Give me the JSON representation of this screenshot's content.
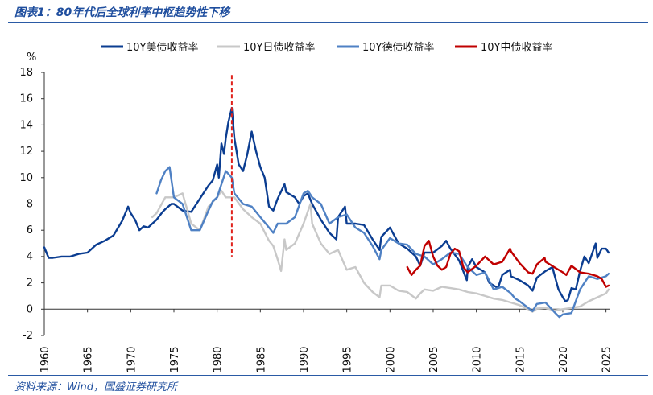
{
  "header": {
    "title": "图表1：80年代后全球利率中枢趋势性下移"
  },
  "footer": {
    "source": "资料来源：Wind，国盛证券研究所"
  },
  "chart_data": {
    "type": "line",
    "title": "图表1：80年代后全球利率中枢趋势性下移",
    "xlabel": "",
    "ylabel": "%",
    "xlim": [
      1960,
      2025.5
    ],
    "ylim": [
      -2,
      18
    ],
    "x_ticks": [
      1960,
      1965,
      1970,
      1975,
      1980,
      1985,
      1990,
      1995,
      2000,
      2005,
      2010,
      2015,
      2020,
      2025
    ],
    "y_ticks": [
      -2,
      0,
      2,
      4,
      6,
      8,
      10,
      12,
      14,
      16,
      18
    ],
    "legend_position": "top",
    "annotations": [
      {
        "type": "vertical-dashed-line",
        "x": 1981.7,
        "y_range": [
          4,
          17.8
        ],
        "color": "#e0221c"
      }
    ],
    "series": [
      {
        "name": "10Y美债收益率",
        "color": "#0b3d91",
        "x": [
          1960,
          1960.5,
          1961,
          1962,
          1963,
          1964,
          1965,
          1966,
          1967,
          1968,
          1969,
          1969.7,
          1970,
          1970.5,
          1971,
          1971.5,
          1972,
          1973,
          1973.7,
          1974,
          1974.7,
          1975,
          1976,
          1977,
          1978,
          1979,
          1979.5,
          1980,
          1980.2,
          1980.5,
          1980.8,
          1981,
          1981.3,
          1981.7,
          1982,
          1982.5,
          1983,
          1983.5,
          1984,
          1984.5,
          1985,
          1985.5,
          1986,
          1986.5,
          1987,
          1987.8,
          1988,
          1989,
          1989.5,
          1990,
          1990.5,
          1991,
          1992,
          1993,
          1993.8,
          1994,
          1994.8,
          1995,
          1996,
          1997,
          1998,
          1998.8,
          1999,
          2000,
          2001,
          2002,
          2003,
          2003.5,
          2004,
          2005,
          2006,
          2006.5,
          2007,
          2008,
          2008.9,
          2009,
          2009.5,
          2010,
          2011,
          2011.5,
          2012,
          2012.5,
          2013,
          2013.9,
          2014,
          2015,
          2016,
          2016.5,
          2017,
          2018,
          2018.8,
          2019,
          2019.5,
          2020,
          2020.3,
          2020.6,
          2021,
          2021.5,
          2022,
          2022.5,
          2023,
          2023.8,
          2024,
          2024.5,
          2025,
          2025.3
        ],
        "y": [
          4.7,
          3.9,
          3.9,
          4.0,
          4.0,
          4.2,
          4.3,
          4.9,
          5.2,
          5.6,
          6.7,
          7.8,
          7.3,
          6.8,
          6.0,
          6.3,
          6.2,
          6.8,
          7.4,
          7.6,
          8.0,
          8.0,
          7.5,
          7.4,
          8.4,
          9.4,
          9.8,
          11.0,
          10.0,
          12.6,
          11.8,
          13.0,
          14.2,
          15.3,
          13.0,
          11.0,
          10.5,
          11.8,
          13.5,
          12.0,
          10.8,
          10.0,
          7.8,
          7.5,
          8.4,
          9.5,
          8.9,
          8.5,
          8.0,
          8.6,
          8.8,
          8.0,
          6.8,
          5.8,
          5.3,
          7.0,
          7.8,
          6.5,
          6.5,
          6.4,
          5.3,
          4.5,
          5.5,
          6.2,
          5.0,
          4.6,
          4.0,
          3.3,
          4.3,
          4.3,
          4.8,
          5.2,
          4.6,
          3.7,
          2.2,
          3.2,
          3.8,
          3.2,
          2.8,
          2.0,
          1.8,
          1.6,
          2.6,
          3.0,
          2.5,
          2.2,
          1.8,
          1.4,
          2.4,
          2.9,
          3.2,
          2.7,
          1.5,
          0.9,
          0.6,
          0.7,
          1.6,
          1.5,
          2.9,
          4.0,
          3.5,
          5.0,
          3.9,
          4.6,
          4.6,
          4.3
        ]
      },
      {
        "name": "10Y日债收益率",
        "color": "#c8c8c8",
        "x": [
          1972.5,
          1973,
          1974,
          1975,
          1976,
          1977,
          1978,
          1979,
          1980,
          1980.5,
          1981,
          1982,
          1983,
          1984,
          1985,
          1986,
          1986.5,
          1987,
          1987.4,
          1987.8,
          1988,
          1989,
          1990,
          1990.8,
          1991,
          1992,
          1993,
          1994,
          1995,
          1996,
          1997,
          1998,
          1998.8,
          1999,
          2000,
          2001,
          2002,
          2003,
          2003.5,
          2004,
          2005,
          2006,
          2007,
          2008,
          2009,
          2010,
          2011,
          2012,
          2013,
          2014,
          2015,
          2016,
          2016.5,
          2017,
          2018,
          2019,
          2020,
          2021,
          2022,
          2023,
          2024,
          2025,
          2025.3
        ],
        "y": [
          7.0,
          7.3,
          8.5,
          8.5,
          8.8,
          6.5,
          6.0,
          7.8,
          8.5,
          9.0,
          8.5,
          8.5,
          7.6,
          7.0,
          6.5,
          5.2,
          4.8,
          3.8,
          2.9,
          5.3,
          4.5,
          5.0,
          6.5,
          8.0,
          6.5,
          5.0,
          4.2,
          4.5,
          3.0,
          3.2,
          2.0,
          1.3,
          0.9,
          1.8,
          1.8,
          1.4,
          1.3,
          0.8,
          1.2,
          1.5,
          1.4,
          1.7,
          1.6,
          1.5,
          1.3,
          1.2,
          1.0,
          0.8,
          0.7,
          0.5,
          0.3,
          0.0,
          -0.2,
          0.05,
          0.1,
          -0.1,
          0.0,
          0.1,
          0.2,
          0.6,
          0.9,
          1.2,
          1.5
        ]
      },
      {
        "name": "10Y德债收益率",
        "color": "#4f81c4",
        "x": [
          1973,
          1973.5,
          1974,
          1974.5,
          1975,
          1976,
          1977,
          1978,
          1979,
          1979.5,
          1980,
          1980.5,
          1981,
          1981.7,
          1982,
          1983,
          1984,
          1985,
          1986,
          1986.5,
          1987,
          1988,
          1989,
          1990,
          1990.5,
          1991,
          1992,
          1993,
          1994,
          1995,
          1996,
          1997,
          1998,
          1998.8,
          1999,
          2000,
          2001,
          2002,
          2003,
          2004,
          2005,
          2006,
          2007,
          2008,
          2009,
          2010,
          2011,
          2012,
          2013,
          2014,
          2014.5,
          2015,
          2016,
          2016.5,
          2017,
          2018,
          2019,
          2019.6,
          2020,
          2021,
          2022,
          2023,
          2024,
          2025,
          2025.3
        ],
        "y": [
          8.8,
          9.8,
          10.5,
          10.8,
          8.5,
          8.0,
          6.0,
          6.0,
          7.5,
          8.2,
          8.5,
          9.5,
          10.5,
          10.0,
          8.8,
          8.0,
          7.8,
          7.0,
          6.2,
          5.8,
          6.5,
          6.5,
          7.0,
          8.8,
          9.0,
          8.5,
          8.0,
          6.5,
          7.0,
          7.2,
          6.2,
          5.8,
          4.8,
          3.8,
          4.5,
          5.4,
          5.0,
          4.9,
          4.2,
          4.0,
          3.4,
          3.8,
          4.3,
          4.2,
          3.2,
          2.6,
          2.8,
          1.5,
          1.7,
          1.2,
          0.8,
          0.6,
          0.1,
          -0.15,
          0.4,
          0.5,
          -0.2,
          -0.6,
          -0.4,
          -0.3,
          1.5,
          2.5,
          2.3,
          2.5,
          2.7
        ]
      },
      {
        "name": "10Y中债收益率",
        "color": "#c00000",
        "x": [
          2002,
          2002.5,
          2003,
          2003.5,
          2004,
          2004.5,
          2005,
          2005.5,
          2006,
          2006.5,
          2007,
          2007.5,
          2008,
          2008.5,
          2009,
          2010,
          2011,
          2011.5,
          2012,
          2013,
          2013.9,
          2014,
          2015,
          2016,
          2016.5,
          2017,
          2017.9,
          2018,
          2019,
          2020,
          2020.4,
          2021,
          2022,
          2023,
          2024,
          2024.5,
          2025,
          2025.3
        ],
        "y": [
          3.2,
          2.6,
          3.0,
          3.3,
          4.8,
          5.2,
          4.0,
          3.3,
          3.0,
          3.2,
          4.2,
          4.6,
          4.4,
          3.2,
          2.8,
          3.3,
          4.0,
          3.7,
          3.4,
          3.6,
          4.6,
          4.4,
          3.5,
          2.8,
          2.7,
          3.4,
          3.9,
          3.6,
          3.2,
          2.8,
          2.6,
          3.3,
          2.8,
          2.7,
          2.5,
          2.3,
          1.7,
          1.8
        ]
      }
    ]
  }
}
